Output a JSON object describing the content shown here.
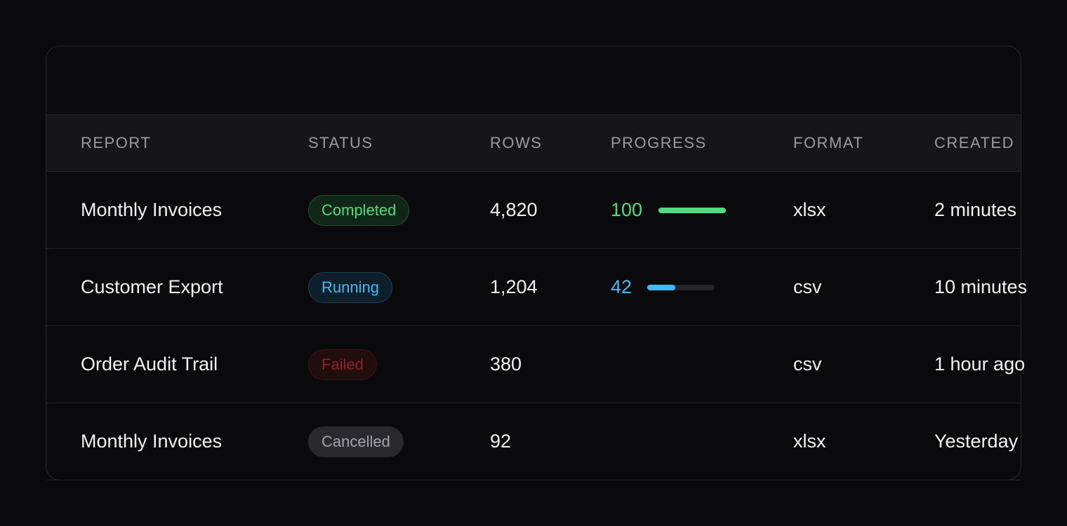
{
  "table": {
    "columns": [
      "REPORT",
      "STATUS",
      "ROWS",
      "PROGRESS",
      "FORMAT",
      "CREATED"
    ],
    "rows": [
      [
        "Monthly Invoices",
        "Completed",
        "4,820",
        100,
        "xlsx",
        "2 minutes"
      ],
      [
        "Customer Export",
        "Running",
        "1,204",
        42,
        "csv",
        "10 minutes"
      ],
      [
        "Order Audit Trail",
        "Failed",
        "380",
        null,
        "csv",
        "1 hour ago"
      ],
      [
        "Monthly Invoices",
        "Cancelled",
        "92",
        null,
        "xlsx",
        "Yesterday"
      ]
    ]
  }
}
